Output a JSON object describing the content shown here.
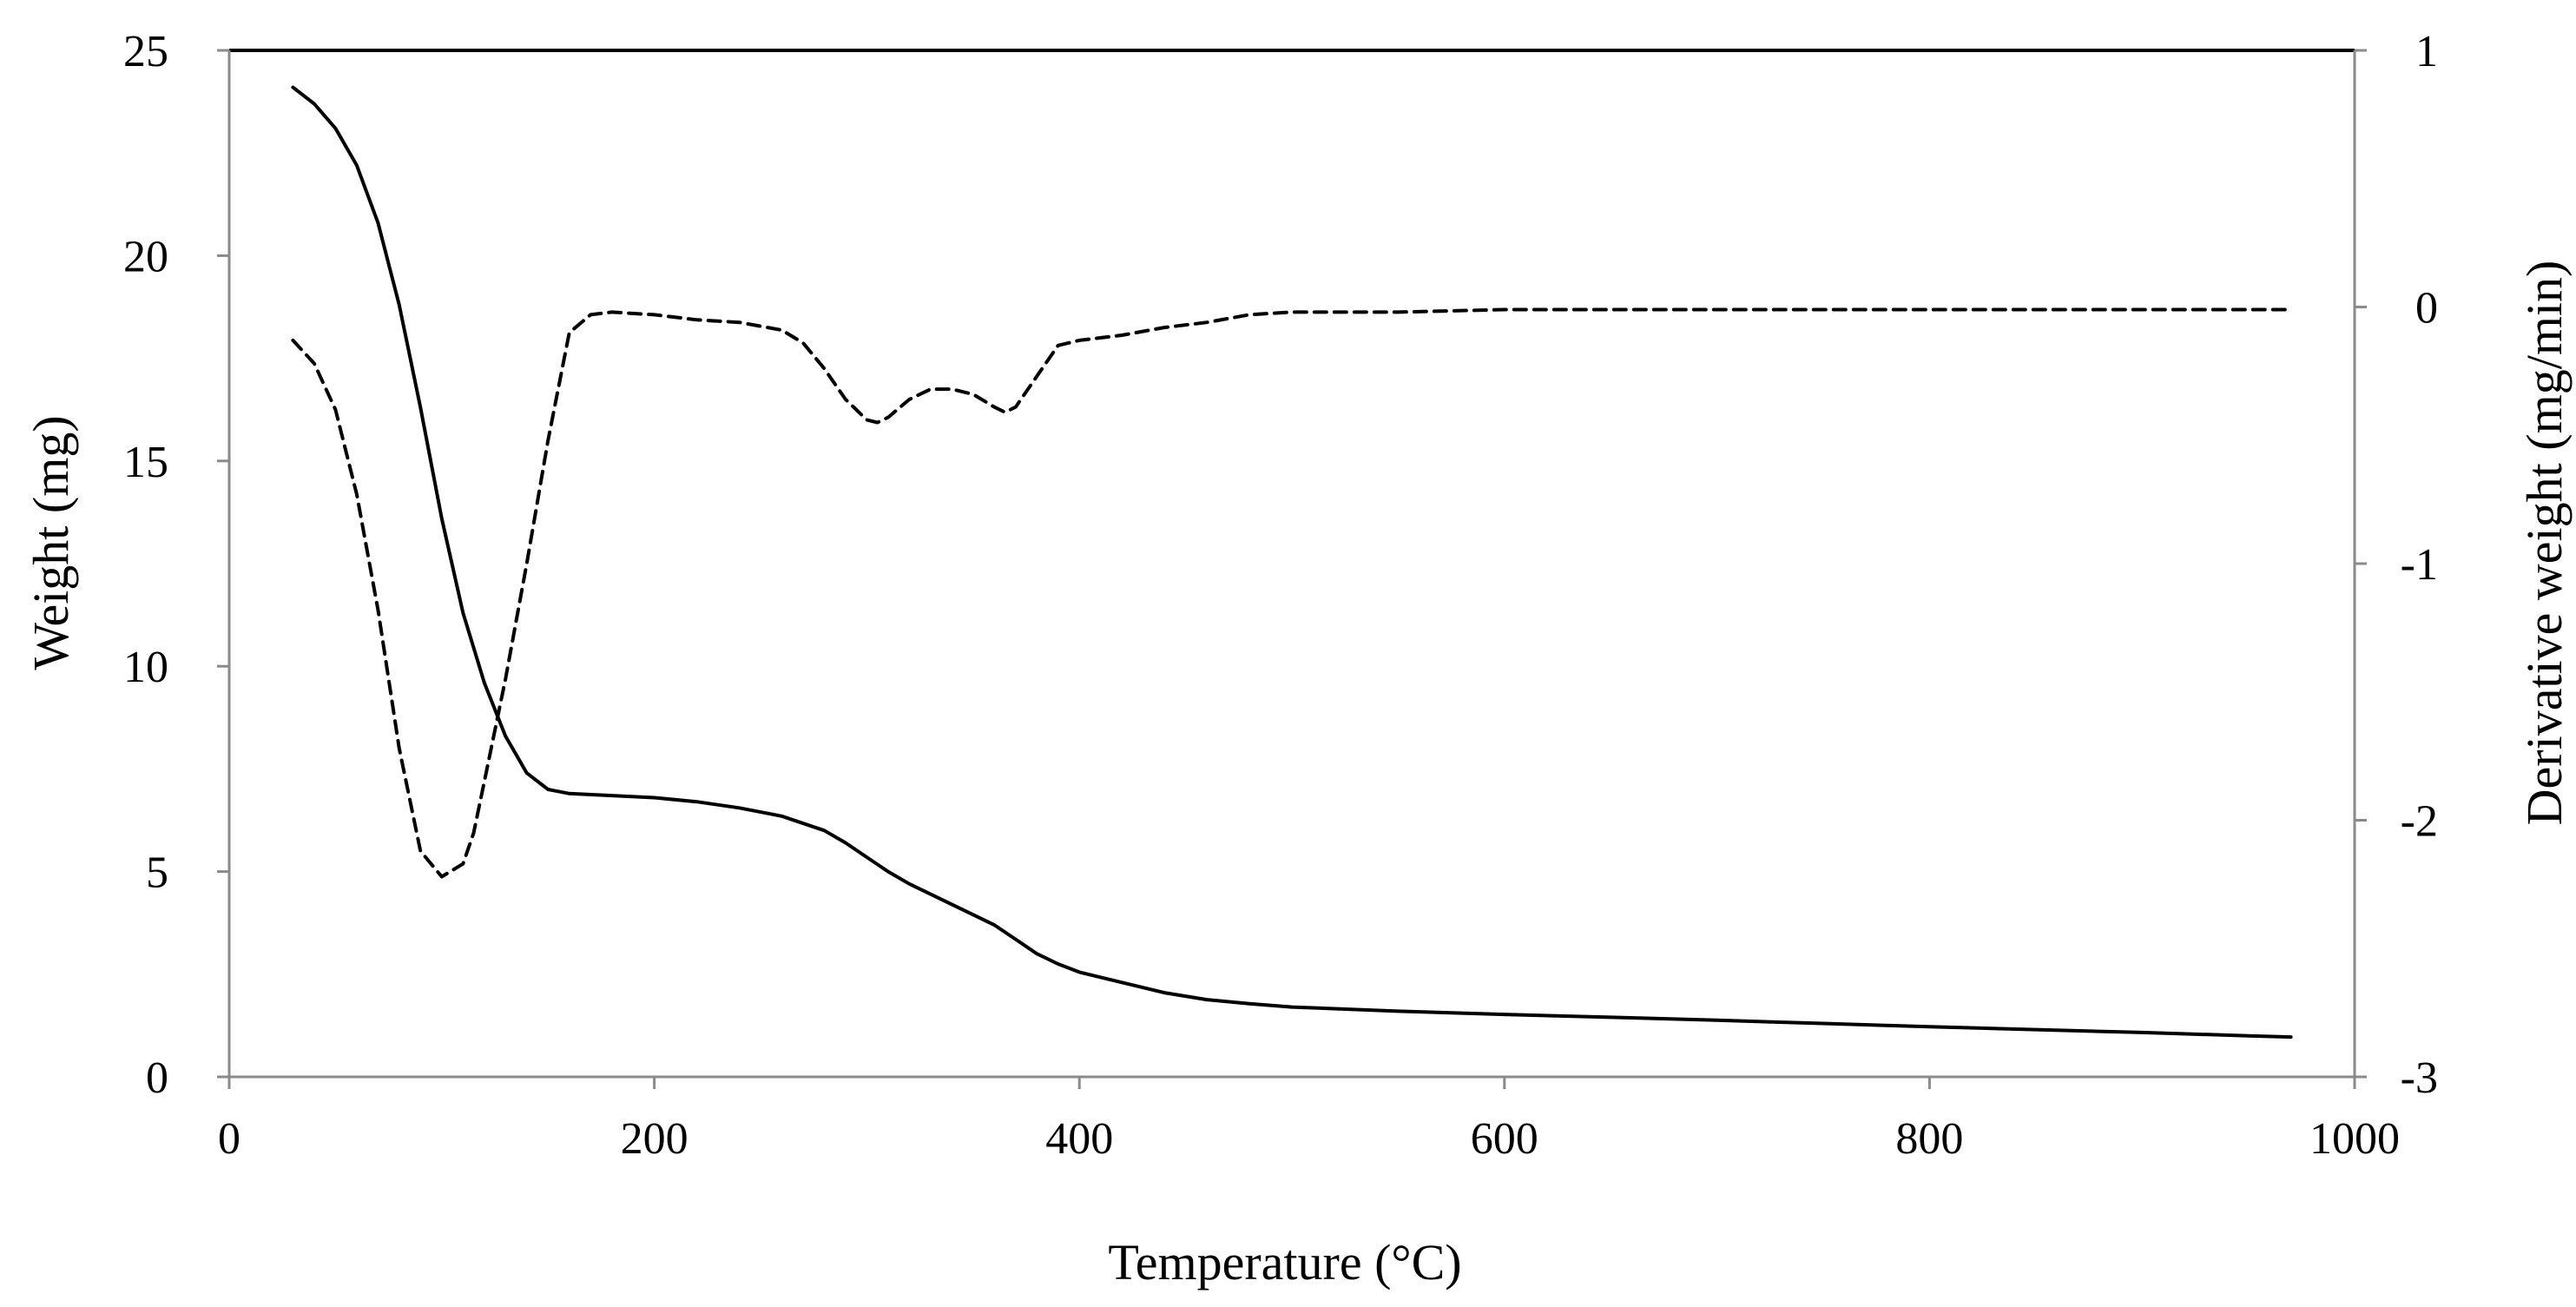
{
  "chart_data": {
    "type": "line",
    "title": "",
    "xlabel": "Temperature (°C)",
    "ylabel": "Weight (mg)",
    "y2label": "Derivative weight (mg/min)",
    "xlim": [
      0,
      1000
    ],
    "ylim": [
      0,
      25
    ],
    "y2lim": [
      -3,
      1
    ],
    "x_ticks": [
      0,
      200,
      400,
      600,
      800,
      1000
    ],
    "y_ticks": [
      0,
      5,
      10,
      15,
      20,
      25
    ],
    "y2_ticks": [
      -3,
      -2,
      -1,
      0,
      1
    ],
    "grid": false,
    "legend": "none",
    "series": [
      {
        "name": "Weight",
        "axis": "left",
        "style": "solid",
        "x": [
          30,
          40,
          50,
          60,
          70,
          80,
          90,
          100,
          110,
          120,
          130,
          140,
          150,
          160,
          180,
          200,
          220,
          240,
          260,
          280,
          290,
          300,
          310,
          320,
          340,
          360,
          370,
          380,
          390,
          400,
          420,
          440,
          460,
          480,
          500,
          550,
          600,
          650,
          700,
          750,
          800,
          850,
          900,
          950,
          970
        ],
        "values": [
          24.1,
          23.7,
          23.1,
          22.2,
          20.8,
          18.8,
          16.3,
          13.6,
          11.3,
          9.6,
          8.3,
          7.4,
          7.0,
          6.9,
          6.85,
          6.8,
          6.7,
          6.55,
          6.35,
          6.0,
          5.7,
          5.35,
          5.0,
          4.7,
          4.2,
          3.7,
          3.35,
          3.0,
          2.75,
          2.55,
          2.3,
          2.05,
          1.88,
          1.78,
          1.7,
          1.6,
          1.52,
          1.45,
          1.38,
          1.3,
          1.22,
          1.15,
          1.08,
          1.0,
          0.97
        ]
      },
      {
        "name": "Derivative weight",
        "axis": "right",
        "style": "dashed",
        "x": [
          30,
          40,
          50,
          60,
          70,
          80,
          90,
          100,
          110,
          115,
          120,
          130,
          140,
          150,
          160,
          170,
          180,
          200,
          220,
          240,
          260,
          270,
          280,
          290,
          300,
          305,
          310,
          320,
          330,
          340,
          350,
          360,
          365,
          370,
          380,
          390,
          400,
          420,
          440,
          460,
          480,
          500,
          550,
          600,
          650,
          700,
          750,
          800,
          850,
          900,
          950,
          970
        ],
        "values": [
          -0.13,
          -0.22,
          -0.4,
          -0.73,
          -1.18,
          -1.72,
          -2.12,
          -2.22,
          -2.17,
          -2.05,
          -1.85,
          -1.45,
          -1.0,
          -0.52,
          -0.1,
          -0.03,
          -0.02,
          -0.03,
          -0.05,
          -0.06,
          -0.09,
          -0.14,
          -0.24,
          -0.36,
          -0.44,
          -0.45,
          -0.43,
          -0.36,
          -0.32,
          -0.32,
          -0.34,
          -0.39,
          -0.41,
          -0.39,
          -0.27,
          -0.15,
          -0.13,
          -0.11,
          -0.08,
          -0.06,
          -0.03,
          -0.02,
          -0.02,
          -0.01,
          -0.01,
          -0.01,
          -0.01,
          -0.01,
          -0.01,
          -0.01,
          -0.01,
          -0.01
        ]
      }
    ]
  }
}
